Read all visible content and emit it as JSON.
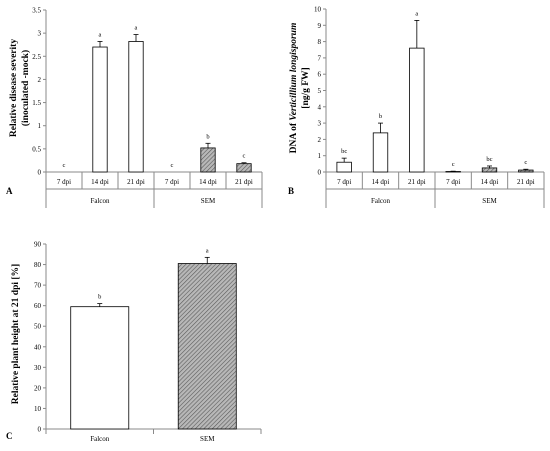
{
  "chart_data": [
    {
      "panel": "A",
      "type": "bar",
      "ylabel_line1": "Relative disease severity",
      "ylabel_line2": "(inoculated -mock)",
      "ylim": [
        0,
        3.5
      ],
      "yticks": [
        "0",
        "0.5",
        "1",
        "1.5",
        "2",
        "2.5",
        "3",
        "3.5"
      ],
      "categories": [
        "7 dpi",
        "14 dpi",
        "21 dpi",
        "7 dpi",
        "14 dpi",
        "21 dpi"
      ],
      "groups": [
        "Falcon",
        "SEM"
      ],
      "group_of_bar": [
        0,
        0,
        0,
        1,
        1,
        1
      ],
      "values": [
        0,
        2.7,
        2.82,
        0,
        0.52,
        0.18
      ],
      "errors": [
        0,
        0.12,
        0.15,
        0,
        0.1,
        0.02
      ],
      "letters": [
        "c",
        "a",
        "a",
        "c",
        "b",
        "c"
      ],
      "grid": false
    },
    {
      "panel": "B",
      "type": "bar",
      "ylabel_prefix": "DNA of ",
      "ylabel_italic": "Verticillium  longisporum",
      "ylabel_line2": "[ng/g FW]",
      "ylim": [
        0,
        10
      ],
      "yticks": [
        "0",
        "1",
        "2",
        "3",
        "4",
        "5",
        "6",
        "7",
        "8",
        "9",
        "10"
      ],
      "categories": [
        "7 dpi",
        "14 dpi",
        "21 dpi",
        "7 dpi",
        "14 dpi",
        "21 dpi"
      ],
      "groups": [
        "Falcon",
        "SEM"
      ],
      "group_of_bar": [
        0,
        0,
        0,
        1,
        1,
        1
      ],
      "values": [
        0.6,
        2.4,
        7.6,
        0.03,
        0.25,
        0.12
      ],
      "errors": [
        0.25,
        0.6,
        1.7,
        0.02,
        0.12,
        0.05
      ],
      "letters": [
        "bc",
        "b",
        "a",
        "c",
        "bc",
        "c"
      ],
      "grid": false
    },
    {
      "panel": "C",
      "type": "bar",
      "ylabel": "Relative plant height at 21 dpi [%]",
      "ylim": [
        0,
        90
      ],
      "yticks": [
        "0",
        "10",
        "20",
        "30",
        "40",
        "50",
        "60",
        "70",
        "80",
        "90"
      ],
      "categories": [
        "Falcon",
        "SEM"
      ],
      "values": [
        59.5,
        80.5
      ],
      "errors": [
        1.5,
        3.0
      ],
      "letters": [
        "b",
        "a"
      ],
      "grid": false
    }
  ],
  "colors": {
    "falcon_fill": "#ffffff",
    "sem_fill": "#b3b3b3",
    "hatch_stroke": "#555555",
    "outline": "#000000",
    "axis": "#8a8a8a"
  }
}
